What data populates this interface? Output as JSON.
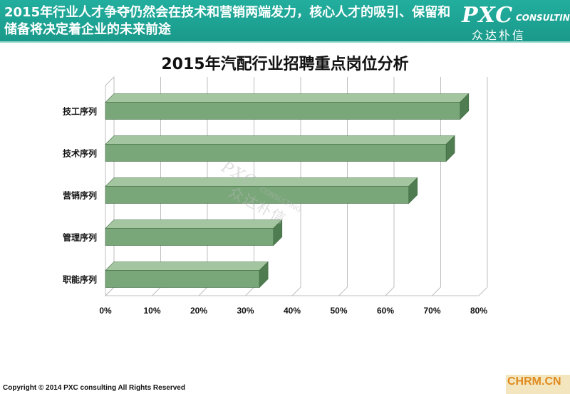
{
  "header": {
    "title": "2015年行业人才争夺仍然会在技术和营销两端发力，核心人才的吸引、保留和储备将决定着企业的未来前途",
    "logo_main": "PXC",
    "logo_sub": "CONSULTING",
    "logo_cn": "众达朴信"
  },
  "watermark": {
    "main": "PXC",
    "sub": "CONSULTING",
    "cn": "众达朴信"
  },
  "footer": {
    "copyright": "Copyright © 2014  PXC consulting All Rights Reserved",
    "site": "CHRM.CN"
  },
  "colors": {
    "bar_face": "#7aa77a",
    "bar_top": "#a3c6a0",
    "bar_side": "#4f7c50",
    "header_bg": "#1fa595"
  },
  "chart_data": {
    "type": "bar",
    "orientation": "horizontal",
    "title": "2015年汽配行业招聘重点岗位分析",
    "categories": [
      "技工序列",
      "技术序列",
      "营销序列",
      "管理序列",
      "职能序列"
    ],
    "values": [
      76,
      73,
      65,
      36,
      33
    ],
    "xlim": [
      0,
      80
    ],
    "x_ticks": [
      0,
      10,
      20,
      30,
      40,
      50,
      60,
      70,
      80
    ],
    "x_tick_labels": [
      "0%",
      "10%",
      "20%",
      "30%",
      "40%",
      "50%",
      "60%",
      "70%",
      "80%"
    ],
    "grid": true,
    "legend": "none",
    "style": "3d"
  }
}
